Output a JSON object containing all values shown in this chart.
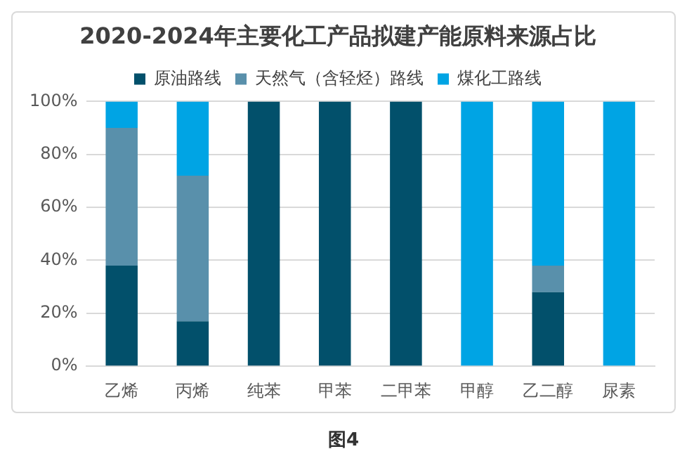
{
  "chart_data": {
    "type": "bar",
    "title": "2020-2024年主要化工产品拟建产能原料来源占比",
    "categories": [
      "乙烯",
      "丙烯",
      "纯苯",
      "甲苯",
      "二甲苯",
      "甲醇",
      "乙二醇",
      "尿素"
    ],
    "stacked": true,
    "series": [
      {
        "name": "原油路线",
        "color": "#02506b",
        "values": [
          38,
          17,
          100,
          100,
          100,
          0,
          28,
          0
        ]
      },
      {
        "name": "天然气（含轻烃）路线",
        "color": "#5990ab",
        "values": [
          52,
          55,
          0,
          0,
          0,
          0,
          10,
          0
        ]
      },
      {
        "name": "煤化工路线",
        "color": "#00a4e4",
        "values": [
          10,
          28,
          0,
          0,
          0,
          100,
          62,
          100
        ]
      }
    ],
    "ylim": [
      0,
      100
    ],
    "yticks": [
      {
        "value": 0,
        "label": "0%"
      },
      {
        "value": 20,
        "label": "20%"
      },
      {
        "value": 40,
        "label": "40%"
      },
      {
        "value": 60,
        "label": "60%"
      },
      {
        "value": 80,
        "label": "80%"
      },
      {
        "value": 100,
        "label": "100%"
      }
    ],
    "grid": "y",
    "legend": "top",
    "annotations": [
      "图4"
    ]
  }
}
